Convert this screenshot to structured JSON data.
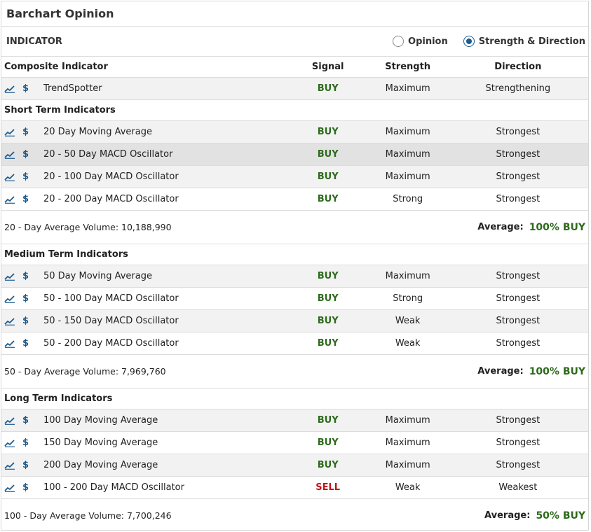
{
  "title": "Barchart Opinion",
  "indicator_label": "INDICATOR",
  "radios": [
    {
      "label": "Opinion",
      "checked": false
    },
    {
      "label": "Strength & Direction",
      "checked": true
    }
  ],
  "columns": {
    "name": "Composite Indicator",
    "signal": "Signal",
    "strength": "Strength",
    "direction": "Direction"
  },
  "colors": {
    "buy": "#2d6a1c",
    "sell": "#c0141a",
    "accent": "#1c5b8e"
  },
  "icons": {
    "chart": "line-chart-icon",
    "dollar": "dollar-icon"
  },
  "composite": {
    "name": "TrendSpotter",
    "signal": "BUY",
    "strength": "Maximum",
    "direction": "Strengthening"
  },
  "short_term": {
    "title": "Short Term Indicators",
    "rows": [
      {
        "name": "20 Day Moving Average",
        "signal": "BUY",
        "strength": "Maximum",
        "direction": "Strongest"
      },
      {
        "name": "20 - 50 Day MACD Oscillator",
        "signal": "BUY",
        "strength": "Maximum",
        "direction": "Strongest"
      },
      {
        "name": "20 - 100 Day MACD Oscillator",
        "signal": "BUY",
        "strength": "Maximum",
        "direction": "Strongest"
      },
      {
        "name": "20 - 200 Day MACD Oscillator",
        "signal": "BUY",
        "strength": "Strong",
        "direction": "Strongest"
      }
    ],
    "volume_text": "20 - Day Average Volume: 10,188,990",
    "average_label": "Average:",
    "average_value": "100% BUY"
  },
  "medium_term": {
    "title": "Medium Term Indicators",
    "rows": [
      {
        "name": "50 Day Moving Average",
        "signal": "BUY",
        "strength": "Maximum",
        "direction": "Strongest"
      },
      {
        "name": "50 - 100 Day MACD Oscillator",
        "signal": "BUY",
        "strength": "Strong",
        "direction": "Strongest"
      },
      {
        "name": "50 - 150 Day MACD Oscillator",
        "signal": "BUY",
        "strength": "Weak",
        "direction": "Strongest"
      },
      {
        "name": "50 - 200 Day MACD Oscillator",
        "signal": "BUY",
        "strength": "Weak",
        "direction": "Strongest"
      }
    ],
    "volume_text": "50 - Day Average Volume: 7,969,760",
    "average_label": "Average:",
    "average_value": "100% BUY"
  },
  "long_term": {
    "title": "Long Term Indicators",
    "rows": [
      {
        "name": "100 Day Moving Average",
        "signal": "BUY",
        "strength": "Maximum",
        "direction": "Strongest"
      },
      {
        "name": "150 Day Moving Average",
        "signal": "BUY",
        "strength": "Maximum",
        "direction": "Strongest"
      },
      {
        "name": "200 Day Moving Average",
        "signal": "BUY",
        "strength": "Maximum",
        "direction": "Strongest"
      },
      {
        "name": "100 - 200 Day MACD Oscillator",
        "signal": "SELL",
        "strength": "Weak",
        "direction": "Weakest"
      }
    ],
    "volume_text": "100 - Day Average Volume: 7,700,246",
    "average_label": "Average:",
    "average_value": "50% BUY"
  }
}
